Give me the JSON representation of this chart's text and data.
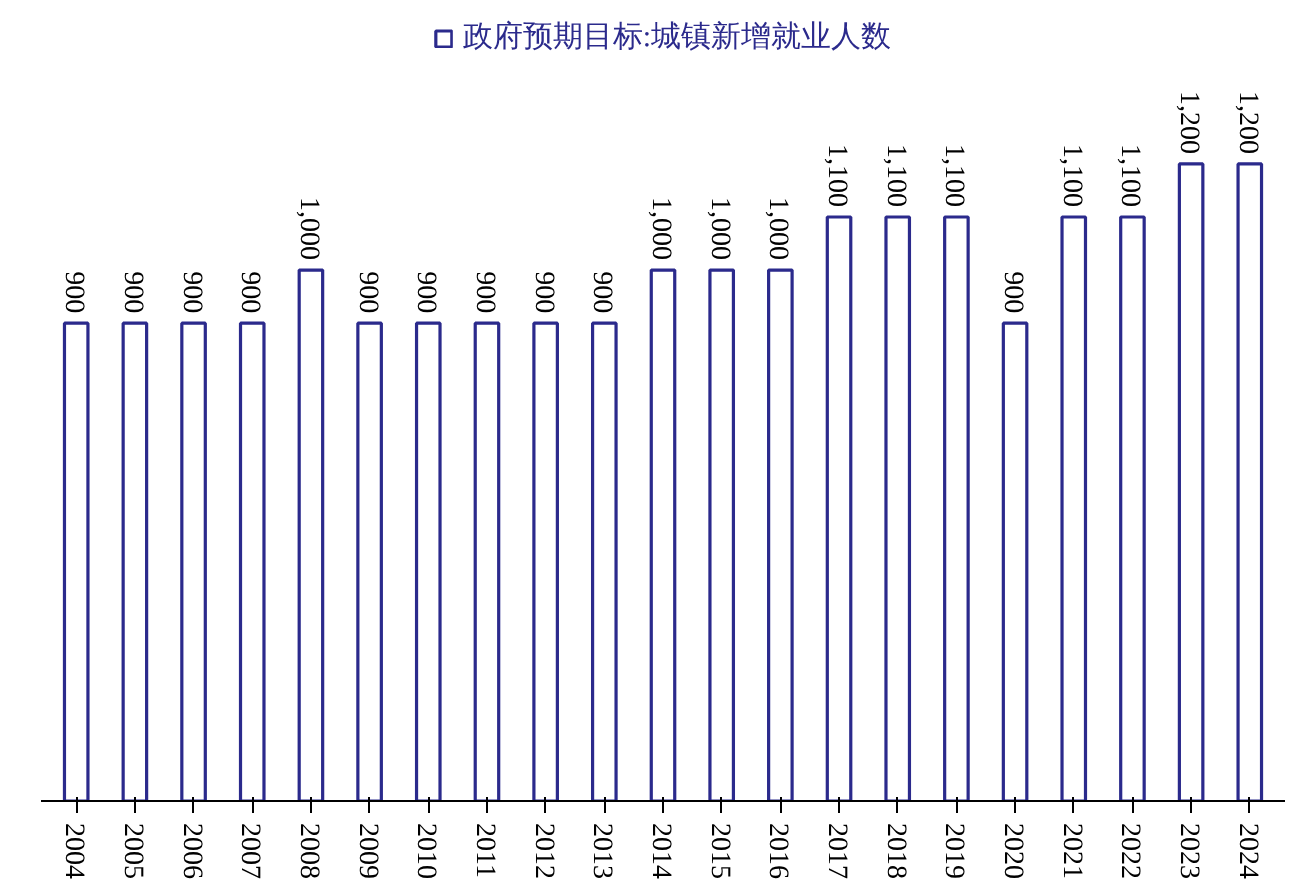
{
  "chart_data": {
    "type": "bar",
    "categories": [
      "2004",
      "2005",
      "2006",
      "2007",
      "2008",
      "2009",
      "2010",
      "2011",
      "2012",
      "2013",
      "2014",
      "2015",
      "2016",
      "2017",
      "2018",
      "2019",
      "2020",
      "2021",
      "2022",
      "2023",
      "2024"
    ],
    "series": [
      {
        "name": "政府预期目标:城镇新增就业人数",
        "color": "#2b2a8c",
        "values": [
          900,
          900,
          900,
          900,
          1000,
          900,
          900,
          900,
          900,
          900,
          1000,
          1000,
          1000,
          1100,
          1100,
          1100,
          900,
          1100,
          1100,
          1200,
          1200
        ],
        "value_labels": [
          "900",
          "900",
          "900",
          "900",
          "1,000",
          "900",
          "900",
          "900",
          "900",
          "900",
          "1,000",
          "1,000",
          "1,000",
          "1,100",
          "1,100",
          "1,100",
          "900",
          "1,100",
          "1,100",
          "1,200",
          "1,200"
        ]
      }
    ],
    "data_labels": true,
    "legend": "top",
    "grid": false
  }
}
